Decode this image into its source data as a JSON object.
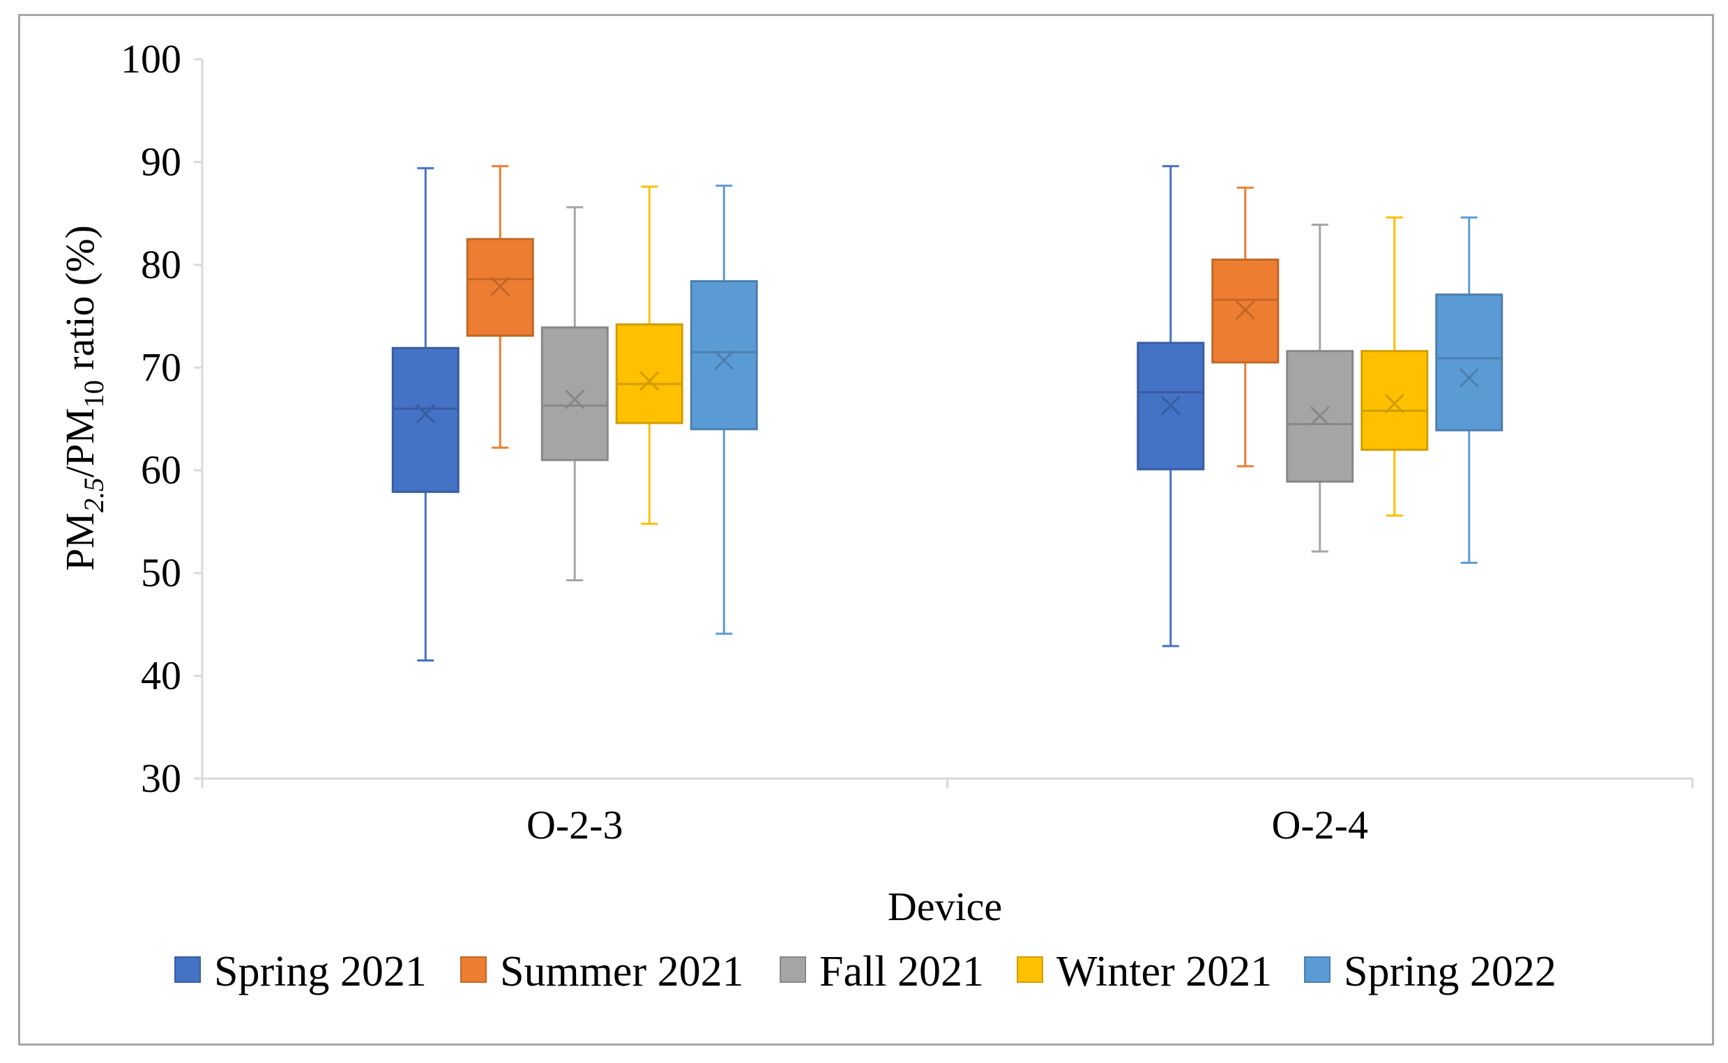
{
  "chart_data": {
    "type": "boxplot",
    "title": "",
    "xlabel": "Device",
    "ylabel": {
      "prefix": "PM",
      "sub1": "2.5",
      "middle": "/PM",
      "sub2": "10",
      "suffix": " ratio (%)"
    },
    "ylim": [
      30,
      100
    ],
    "yticks": [
      "30",
      "40",
      "50",
      "60",
      "70",
      "80",
      "90",
      "100"
    ],
    "grid": false,
    "legend_position": "bottom",
    "categories": [
      "O-2-3",
      "O-2-4"
    ],
    "series": [
      {
        "name": "Spring 2021",
        "color": "#4472c4",
        "boxes": [
          {
            "min": 41.5,
            "q1": 57.9,
            "median": 66.0,
            "mean": 65.5,
            "q3": 71.9,
            "max": 89.4
          },
          {
            "min": 42.9,
            "q1": 60.1,
            "median": 67.6,
            "mean": 66.3,
            "q3": 72.4,
            "max": 89.6
          }
        ]
      },
      {
        "name": "Summer 2021",
        "color": "#ed7d31",
        "boxes": [
          {
            "min": 62.2,
            "q1": 73.1,
            "median": 78.6,
            "mean": 77.9,
            "q3": 82.5,
            "max": 89.6
          },
          {
            "min": 60.4,
            "q1": 70.5,
            "median": 76.6,
            "mean": 75.6,
            "q3": 80.5,
            "max": 87.5
          }
        ]
      },
      {
        "name": "Fall 2021",
        "color": "#a5a5a5",
        "boxes": [
          {
            "min": 49.3,
            "q1": 61.0,
            "median": 66.3,
            "mean": 66.9,
            "q3": 73.9,
            "max": 85.6
          },
          {
            "min": 52.1,
            "q1": 58.9,
            "median": 64.5,
            "mean": 65.3,
            "q3": 71.6,
            "max": 83.9
          }
        ]
      },
      {
        "name": "Winter 2021",
        "color": "#ffc000",
        "boxes": [
          {
            "min": 54.8,
            "q1": 64.6,
            "median": 68.4,
            "mean": 68.7,
            "q3": 74.2,
            "max": 87.6
          },
          {
            "min": 55.6,
            "q1": 62.0,
            "median": 65.8,
            "mean": 66.5,
            "q3": 71.6,
            "max": 84.6
          }
        ]
      },
      {
        "name": "Spring 2022",
        "color": "#5b9bd5",
        "boxes": [
          {
            "min": 44.1,
            "q1": 64.0,
            "median": 71.5,
            "mean": 70.7,
            "q3": 78.4,
            "max": 87.7
          },
          {
            "min": 51.0,
            "q1": 63.9,
            "median": 70.9,
            "mean": 69.0,
            "q3": 77.1,
            "max": 84.6
          }
        ]
      }
    ]
  }
}
